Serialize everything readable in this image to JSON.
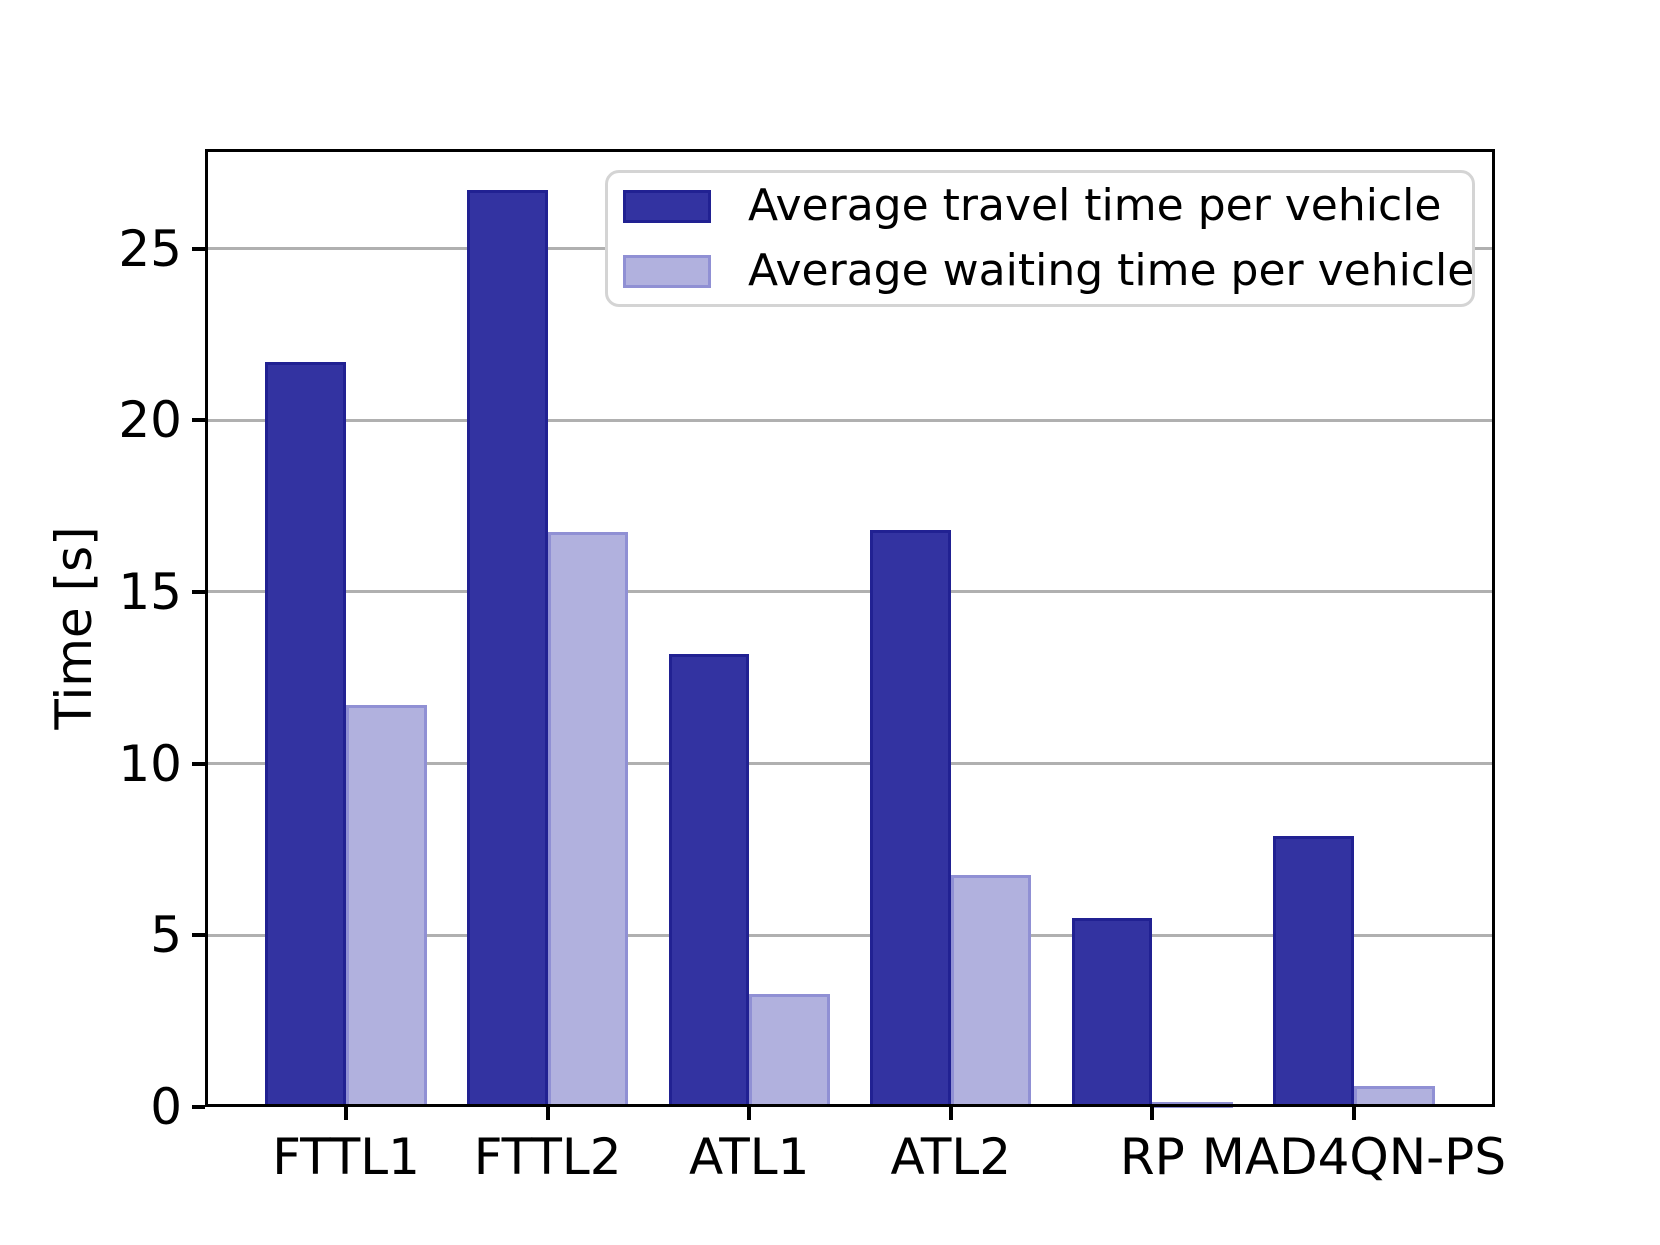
{
  "chart_data": {
    "type": "bar",
    "title": "",
    "ylabel": "Time [s]",
    "xlabel": "",
    "categories": [
      "FTTL1",
      "FTTL2",
      "ATL1",
      "ATL2",
      "RP",
      "MAD4QN-PS"
    ],
    "series": [
      {
        "name": "Average travel time per vehicle",
        "fill": "#3333A1",
        "edge": "#212192",
        "values": [
          21.7,
          26.7,
          13.2,
          16.8,
          5.5,
          7.9
        ]
      },
      {
        "name": "Average waiting time per vehicle",
        "fill": "#B1B1DE",
        "edge": "#9090D4",
        "values": [
          11.7,
          16.75,
          3.3,
          6.75,
          0.15,
          0.6
        ]
      }
    ],
    "yticks": [
      0,
      5,
      10,
      15,
      20,
      25
    ],
    "ylim": [
      0,
      27.9
    ],
    "grid": "horizontal",
    "grid_color": "#B0B0B0",
    "axis_color": "#000000",
    "legend_position": "upper right inside plot"
  }
}
